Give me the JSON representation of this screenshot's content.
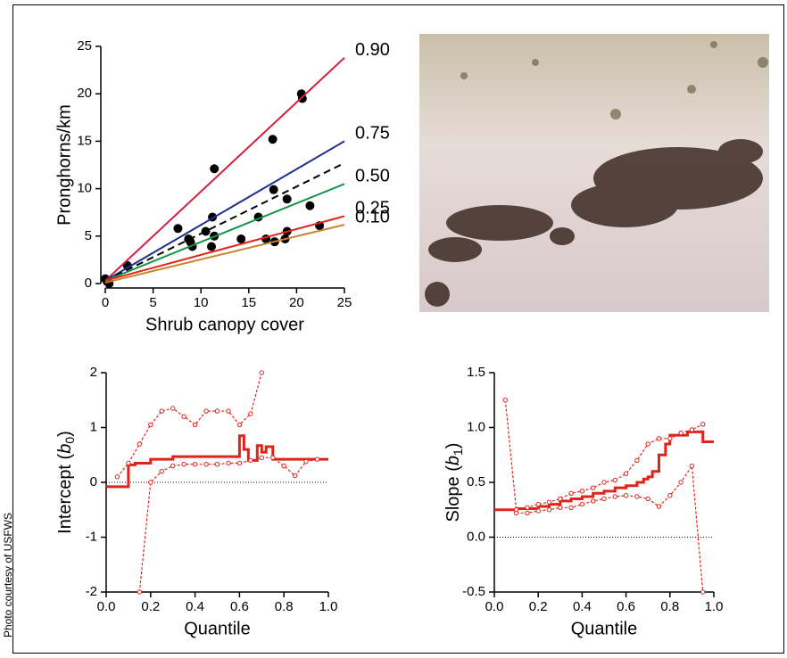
{
  "credit": "Photo courtesy of USFWS",
  "chart_data": [
    {
      "type": "scatter",
      "xlabel": "Shrub canopy cover",
      "ylabel": "Pronghorns/km",
      "xlim": [
        0,
        25
      ],
      "ylim": [
        0,
        25
      ],
      "xticks": [
        0,
        5,
        10,
        15,
        20,
        25
      ],
      "yticks": [
        0,
        5,
        10,
        15,
        20,
        25
      ],
      "grid": false,
      "series": [
        {
          "kind": "points",
          "color": "#000000",
          "x": [
            0.2,
            0,
            0.4,
            2.3,
            7.6,
            8.7,
            8.9,
            9.1,
            10.5,
            11.1,
            11.2,
            11.4,
            11.4,
            14.2,
            16.0,
            16.8,
            17.5,
            17.6,
            17.7,
            18.8,
            19.0,
            19.0,
            20.5,
            20.6,
            21.4,
            22.4
          ],
          "values": [
            0.2,
            0.5,
            0,
            1.9,
            5.8,
            4.7,
            4.4,
            3.9,
            5.5,
            3.9,
            7.0,
            5.0,
            12.1,
            4.7,
            7.0,
            4.7,
            15.2,
            9.9,
            4.4,
            4.7,
            5.5,
            8.9,
            20.0,
            19.5,
            8.2,
            6.1
          ]
        },
        {
          "kind": "line",
          "name": "0.90",
          "color": "#d2203f",
          "x": [
            0,
            25
          ],
          "values": [
            0.3,
            23.8
          ]
        },
        {
          "kind": "line",
          "name": "0.75",
          "color": "#1f2f8c",
          "x": [
            0,
            25
          ],
          "values": [
            0.3,
            15.0
          ]
        },
        {
          "kind": "line",
          "color": "#000000",
          "dash": true,
          "x": [
            0,
            25
          ],
          "values": [
            0.3,
            12.7
          ]
        },
        {
          "kind": "line",
          "name": "0.50",
          "color": "#129447",
          "x": [
            0,
            25
          ],
          "values": [
            0.3,
            10.5
          ]
        },
        {
          "kind": "line",
          "name": "0.25",
          "color": "#e2231a",
          "x": [
            0,
            25
          ],
          "values": [
            0.3,
            7.1
          ]
        },
        {
          "kind": "line",
          "name": "0.10",
          "color": "#c9822a",
          "x": [
            0,
            25
          ],
          "values": [
            0.1,
            6.2
          ]
        }
      ]
    },
    {
      "type": "line",
      "xlabel": "Quantile",
      "ylabel": [
        "Intercept (",
        "b",
        "0",
        ")"
      ],
      "xlim": [
        0,
        1
      ],
      "ylim": [
        -2,
        2
      ],
      "xticks": [
        {
          "value": 0,
          "label": "0.0"
        },
        {
          "value": 0.2,
          "label": "0.2"
        },
        {
          "value": 0.4,
          "label": "0.4"
        },
        {
          "value": 0.6,
          "label": "0.6"
        },
        {
          "value": 0.8,
          "label": "0.8"
        },
        {
          "value": 1,
          "label": "1.0"
        }
      ],
      "yticks": [
        -2,
        -1,
        0,
        1,
        2
      ],
      "refline": 0,
      "grid": false,
      "series": [
        {
          "color": "#e2231a",
          "step": true,
          "x": [
            0,
            0.1,
            0.13,
            0.2,
            0.3,
            0.5,
            0.6,
            0.62,
            0.64,
            0.68,
            0.7,
            0.72,
            0.75,
            0.9
          ],
          "values": [
            -0.08,
            0.32,
            0.35,
            0.42,
            0.47,
            0.47,
            0.85,
            0.6,
            0.4,
            0.67,
            0.55,
            0.65,
            0.42,
            0.42
          ]
        },
        {
          "color": "#e2231a",
          "dash": true,
          "markers": true,
          "x": [
            0.05,
            0.1,
            0.15,
            0.2,
            0.25,
            0.3,
            0.35,
            0.4,
            0.45,
            0.5,
            0.55,
            0.6,
            0.65,
            0.7
          ],
          "values": [
            0.1,
            0.35,
            0.7,
            1.05,
            1.3,
            1.35,
            1.2,
            1.05,
            1.3,
            1.3,
            1.3,
            1.05,
            1.25,
            2.0
          ]
        },
        {
          "color": "#e2231a",
          "dash": true,
          "markers": true,
          "x": [
            0.15,
            0.2,
            0.25,
            0.3,
            0.35,
            0.4,
            0.45,
            0.5,
            0.55,
            0.6,
            0.65,
            0.7,
            0.75,
            0.8,
            0.85,
            0.9,
            0.95
          ],
          "values": [
            -2,
            0.0,
            0.2,
            0.3,
            0.33,
            0.33,
            0.33,
            0.33,
            0.35,
            0.35,
            0.4,
            0.45,
            0.45,
            0.3,
            0.12,
            0.38,
            0.42
          ]
        }
      ]
    },
    {
      "type": "line",
      "xlabel": "Quantile",
      "ylabel": [
        "Slope (",
        "b",
        "1",
        ")"
      ],
      "xlim": [
        0,
        1
      ],
      "ylim": [
        -0.5,
        1.5
      ],
      "xticks": [
        {
          "value": 0,
          "label": "0.0"
        },
        {
          "value": 0.2,
          "label": "0.2"
        },
        {
          "value": 0.4,
          "label": "0.4"
        },
        {
          "value": 0.6,
          "label": "0.6"
        },
        {
          "value": 0.8,
          "label": "0.8"
        },
        {
          "value": 1,
          "label": "1.0"
        }
      ],
      "yticks": [
        {
          "value": -0.5,
          "label": "-0.5"
        },
        {
          "value": 0,
          "label": "0.0"
        },
        {
          "value": 0.5,
          "label": "0.5"
        },
        {
          "value": 1,
          "label": "1.0"
        },
        {
          "value": 1.5,
          "label": "1.5"
        }
      ],
      "refline": 0,
      "grid": false,
      "series": [
        {
          "color": "#e2231a",
          "step": true,
          "x": [
            0,
            0.1,
            0.2,
            0.25,
            0.3,
            0.35,
            0.4,
            0.45,
            0.5,
            0.55,
            0.6,
            0.65,
            0.68,
            0.7,
            0.72,
            0.75,
            0.78,
            0.8,
            0.88,
            0.95,
            1.0
          ],
          "values": [
            0.25,
            0.26,
            0.28,
            0.3,
            0.33,
            0.35,
            0.37,
            0.4,
            0.42,
            0.45,
            0.47,
            0.5,
            0.53,
            0.55,
            0.6,
            0.75,
            0.85,
            0.93,
            0.96,
            0.87,
            0.87
          ]
        },
        {
          "color": "#e2231a",
          "dash": true,
          "markers": true,
          "x": [
            0.05,
            0.1,
            0.15,
            0.2,
            0.25,
            0.3,
            0.35,
            0.4,
            0.45,
            0.5,
            0.55,
            0.6,
            0.65,
            0.7,
            0.75,
            0.8,
            0.85,
            0.9,
            0.95
          ],
          "values": [
            1.25,
            0.25,
            0.27,
            0.3,
            0.32,
            0.35,
            0.4,
            0.42,
            0.45,
            0.5,
            0.52,
            0.58,
            0.7,
            0.85,
            0.9,
            0.9,
            0.95,
            0.98,
            1.03
          ]
        },
        {
          "color": "#e2231a",
          "dash": true,
          "markers": true,
          "x": [
            0.1,
            0.15,
            0.2,
            0.25,
            0.3,
            0.35,
            0.4,
            0.45,
            0.5,
            0.55,
            0.6,
            0.65,
            0.7,
            0.75,
            0.8,
            0.85,
            0.9,
            0.95
          ],
          "values": [
            0.22,
            0.22,
            0.24,
            0.25,
            0.27,
            0.27,
            0.3,
            0.33,
            0.35,
            0.37,
            0.38,
            0.37,
            0.35,
            0.28,
            0.38,
            0.5,
            0.65,
            -0.5
          ]
        }
      ]
    }
  ]
}
